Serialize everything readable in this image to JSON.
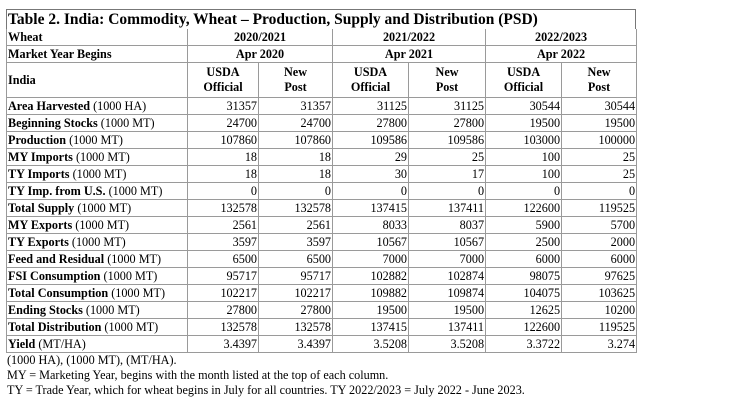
{
  "title": "Table 2. India: Commodity, Wheat – Production, Supply and Distribution (PSD)",
  "header": {
    "commodity": "Wheat",
    "market_year_label": "Market Year Begins",
    "country": "India",
    "years": [
      {
        "year": "2020/2021",
        "begins": "Apr 2020"
      },
      {
        "year": "2021/2022",
        "begins": "Apr 2021"
      },
      {
        "year": "2022/2023",
        "begins": "Apr 2022"
      }
    ],
    "col_usda": "USDA",
    "col_official": "Official",
    "col_new": "New",
    "col_post": "Post"
  },
  "rows": [
    {
      "name": "Area Harvested",
      "unit": " (1000 HA)",
      "values": [
        "31357",
        "31357",
        "31125",
        "31125",
        "30544",
        "30544"
      ]
    },
    {
      "name": "Beginning Stocks",
      "unit": " (1000 MT)",
      "values": [
        "24700",
        "24700",
        "27800",
        "27800",
        "19500",
        "19500"
      ]
    },
    {
      "name": "Production",
      "unit": " (1000 MT)",
      "values": [
        "107860",
        "107860",
        "109586",
        "109586",
        "103000",
        "100000"
      ]
    },
    {
      "name": "MY Imports",
      "unit": " (1000 MT)",
      "values": [
        "18",
        "18",
        "29",
        "25",
        "100",
        "25"
      ]
    },
    {
      "name": "TY Imports",
      "unit": " (1000 MT)",
      "values": [
        "18",
        "18",
        "30",
        "17",
        "100",
        "25"
      ]
    },
    {
      "name": "TY Imp. from U.S.",
      "unit": " (1000 MT)",
      "values": [
        "0",
        "0",
        "0",
        "0",
        "0",
        "0"
      ]
    },
    {
      "name": "Total Supply",
      "unit": " (1000 MT)",
      "values": [
        "132578",
        "132578",
        "137415",
        "137411",
        "122600",
        "119525"
      ]
    },
    {
      "name": "MY Exports",
      "unit": " (1000 MT)",
      "values": [
        "2561",
        "2561",
        "8033",
        "8037",
        "5900",
        "5700"
      ]
    },
    {
      "name": "TY Exports",
      "unit": " (1000 MT)",
      "values": [
        "3597",
        "3597",
        "10567",
        "10567",
        "2500",
        "2000"
      ]
    },
    {
      "name": "Feed and Residual",
      "unit": " (1000 MT)",
      "values": [
        "6500",
        "6500",
        "7000",
        "7000",
        "6000",
        "6000"
      ]
    },
    {
      "name": "FSI Consumption",
      "unit": " (1000 MT)",
      "values": [
        "95717",
        "95717",
        "102882",
        "102874",
        "98075",
        "97625"
      ]
    },
    {
      "name": "Total Consumption",
      "unit": " (1000 MT)",
      "values": [
        "102217",
        "102217",
        "109882",
        "109874",
        "104075",
        "103625"
      ]
    },
    {
      "name": "Ending Stocks",
      "unit": " (1000 MT)",
      "values": [
        "27800",
        "27800",
        "19500",
        "19500",
        "12625",
        "10200"
      ]
    },
    {
      "name": "Total Distribution",
      "unit": " (1000 MT)",
      "values": [
        "132578",
        "132578",
        "137415",
        "137411",
        "122600",
        "119525"
      ]
    },
    {
      "name": "Yield",
      "unit": " (MT/HA)",
      "values": [
        "3.4397",
        "3.4397",
        "3.5208",
        "3.5208",
        "3.3722",
        "3.274"
      ]
    }
  ],
  "notes": [
    "(1000 HA), (1000 MT), (MT/HA).",
    "MY = Marketing Year, begins with the month listed at the top of each column.",
    "TY = Trade Year, which for wheat begins in July for all countries. TY 2022/2023 = July 2022 - June 2023."
  ]
}
